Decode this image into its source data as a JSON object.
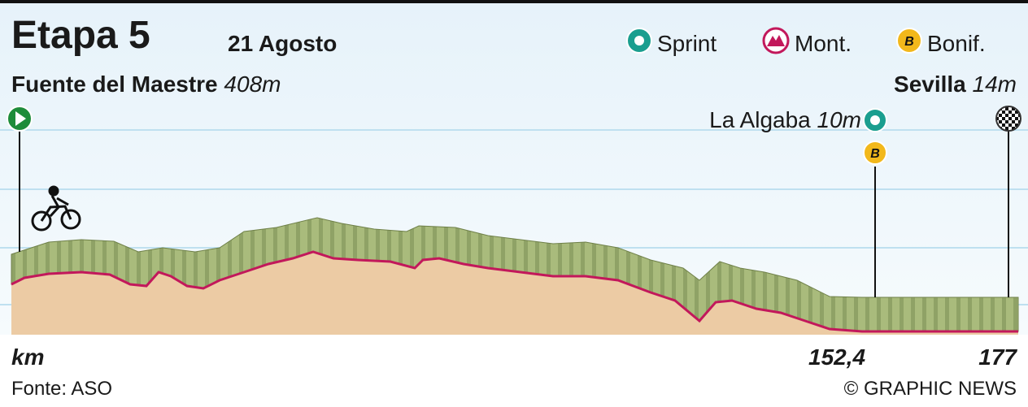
{
  "header": {
    "title": "Etapa 5",
    "date": "21 Agosto"
  },
  "legend": {
    "sprint": "Sprint",
    "mountain": "Mont.",
    "bonus": "Bonif."
  },
  "start": {
    "name": "Fuente del Maestre",
    "altitude": "408m"
  },
  "finish": {
    "name": "Sevilla",
    "altitude": "14m"
  },
  "sprint": {
    "name": "La Algaba",
    "altitude": "10m"
  },
  "axis": {
    "unit": "km",
    "marks": [
      "152,4",
      "177"
    ]
  },
  "footer": {
    "source": "Fonte: ASO",
    "credit": "© GRAPHIC NEWS"
  }
}
